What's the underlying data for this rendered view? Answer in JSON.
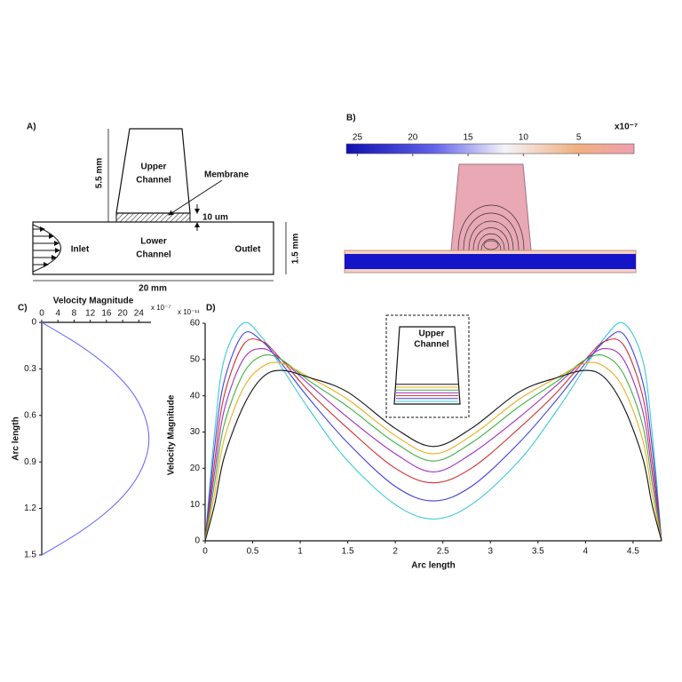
{
  "panel_a": {
    "label": "A)",
    "upper_height": "5.5 mm",
    "upper_channel": [
      "Upper",
      "Channel"
    ],
    "membrane": "Membrane",
    "membrane_thickness": "10 um",
    "inlet": "Inlet",
    "lower_channel": [
      "Lower",
      "Channel"
    ],
    "outlet": "Outlet",
    "lower_height": "1.5 mm",
    "length": "20 mm"
  },
  "panel_b": {
    "label": "B)",
    "scale": "x10⁻⁷",
    "clim": [
      26,
      0
    ],
    "colorbar_ticks": [
      25,
      20,
      15,
      10,
      5
    ]
  },
  "chart_data": [
    {
      "type": "line",
      "panel": "C)",
      "x_label": "Velocity Magnitude",
      "y_label": "Arc length",
      "scale": "x 10⁻⁷",
      "x": [
        0,
        9.5,
        17,
        22.3,
        25.4,
        26.5,
        25.4,
        22.3,
        17,
        9.5,
        0
      ],
      "series": [
        {
          "color": "#6b6bff",
          "values": [
            0,
            0.15,
            0.3,
            0.45,
            0.6,
            0.75,
            0.9,
            1.05,
            1.2,
            1.35,
            1.5
          ]
        }
      ],
      "xlim": [
        0,
        27
      ],
      "xticks": [
        0,
        4,
        8,
        12,
        16,
        20,
        24
      ],
      "ylim": [
        1.5,
        0
      ],
      "yticks": [
        0,
        0.3,
        0.6,
        0.9,
        1.2,
        1.5
      ]
    },
    {
      "type": "line",
      "panel": "D)",
      "x_label": "Arc length",
      "y_label": "Velocity Magnitude",
      "scale": "x 10⁻¹¹",
      "inset_label": [
        "Upper",
        "Channel"
      ],
      "x": [
        0,
        0.1,
        0.2,
        0.4,
        0.6,
        0.8,
        1.1,
        1.5,
        2.0,
        2.4,
        2.8,
        3.3,
        3.7,
        4.0,
        4.2,
        4.4,
        4.6,
        4.7,
        4.8
      ],
      "series": [
        {
          "color": "#3cc8d8",
          "values": [
            0,
            30,
            50,
            60,
            56,
            48,
            36,
            22,
            10,
            6,
            10,
            22,
            36,
            48,
            56,
            60,
            50,
            30,
            0
          ]
        },
        {
          "color": "#4040e0",
          "values": [
            0,
            26,
            44,
            57,
            55,
            49,
            39,
            27,
            15,
            11,
            15,
            27,
            39,
            49,
            55,
            57,
            44,
            26,
            0
          ]
        },
        {
          "color": "#d03030",
          "values": [
            0,
            22,
            40,
            54,
            55,
            50,
            41,
            31,
            20,
            16,
            20,
            31,
            41,
            50,
            55,
            54,
            40,
            22,
            0
          ]
        },
        {
          "color": "#a030c0",
          "values": [
            0,
            19,
            36,
            50,
            53,
            50,
            43,
            34,
            24,
            19,
            24,
            34,
            43,
            50,
            53,
            50,
            36,
            19,
            0
          ]
        },
        {
          "color": "#40b040",
          "values": [
            0,
            16,
            32,
            46,
            51,
            50,
            44,
            37,
            27,
            22,
            27,
            37,
            44,
            50,
            51,
            46,
            32,
            16,
            0
          ]
        },
        {
          "color": "#e8b020",
          "values": [
            0,
            13,
            28,
            42,
            48,
            49,
            45,
            39,
            29,
            24,
            29,
            39,
            45,
            49,
            48,
            42,
            28,
            13,
            0
          ]
        },
        {
          "color": "#111111",
          "values": [
            0,
            10,
            23,
            37,
            45,
            47,
            45,
            41,
            31,
            26,
            31,
            41,
            45,
            47,
            45,
            37,
            23,
            10,
            0
          ]
        }
      ],
      "xlim": [
        0,
        4.8
      ],
      "xticks": [
        0,
        0.5,
        1,
        1.5,
        2,
        2.5,
        3,
        3.5,
        4,
        4.5
      ],
      "ylim": [
        0,
        60
      ],
      "yticks": [
        0,
        10,
        20,
        30,
        40,
        50,
        60
      ]
    }
  ]
}
